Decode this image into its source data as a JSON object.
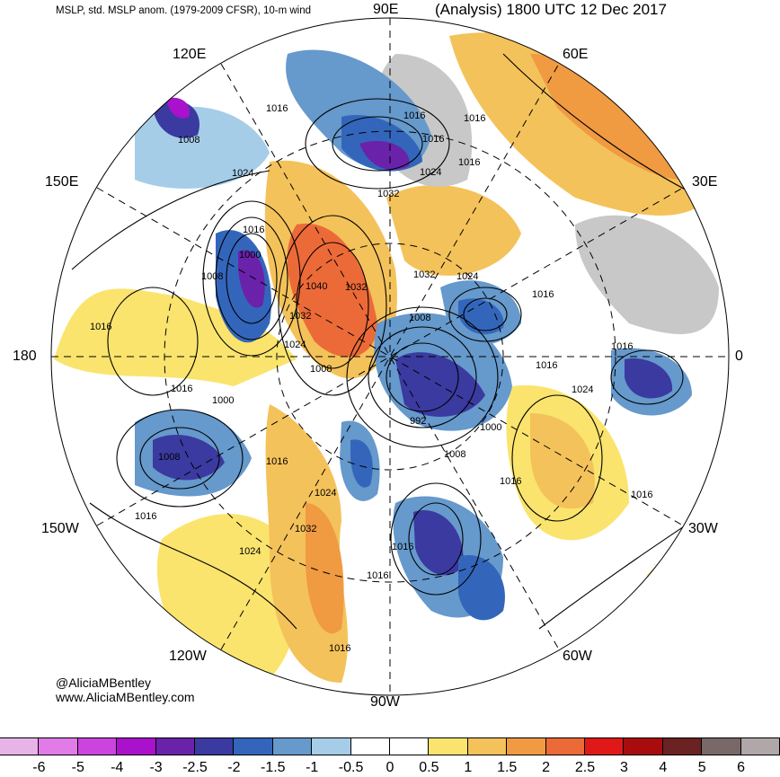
{
  "header": {
    "subtitle": "MSLP, std. MSLP anom. (1979-2009 CFSR), 10-m wind",
    "title": "(Analysis) 1800 UTC 12 Dec 2017"
  },
  "longitude_labels": {
    "lon_90e": "90E",
    "lon_120e": "120E",
    "lon_60e": "60E",
    "lon_150e": "150E",
    "lon_30e": "30E",
    "lon_180": "180",
    "lon_0": "0",
    "lon_150w": "150W",
    "lon_30w": "30W",
    "lon_120w": "120W",
    "lon_60w": "60W",
    "lon_90w": "90W"
  },
  "isobar_labels": [
    "1016",
    "1008",
    "1016",
    "1016",
    "1016",
    "1024",
    "1024",
    "1032",
    "1016",
    "1016",
    "1008",
    "1000",
    "1040",
    "1032",
    "1032",
    "1032",
    "1024",
    "1016",
    "1008",
    "1024",
    "1016",
    "1016",
    "1016",
    "1000",
    "1008",
    "1016",
    "992",
    "1000",
    "1008",
    "1024",
    "1008",
    "1016",
    "1016",
    "1016",
    "1032",
    "1024",
    "1024",
    "1016",
    "1016",
    "1016",
    "1016"
  ],
  "credit": {
    "handle": "@AliciaMBentley",
    "website": "www.AliciaMBentley.com"
  },
  "colorbar": {
    "colors": [
      "#e8b4e8",
      "#e07be8",
      "#cc44dd",
      "#aa11cc",
      "#6a22aa",
      "#3a3aa0",
      "#3366bb",
      "#6699cc",
      "#a5cde8",
      "#ffffff",
      "#ffffff",
      "#fae46e",
      "#f4c25a",
      "#f09a42",
      "#ec6a38",
      "#e01818",
      "#a80c0c",
      "#6a2222",
      "#786868",
      "#b0a8a8"
    ],
    "labels": [
      "-6",
      "-5",
      "-4",
      "-3",
      "-2.5",
      "-2",
      "-1.5",
      "-1",
      "-0.5",
      "0",
      "0.5",
      "1",
      "1.5",
      "2",
      "2.5",
      "3",
      "4",
      "5",
      "6"
    ]
  }
}
